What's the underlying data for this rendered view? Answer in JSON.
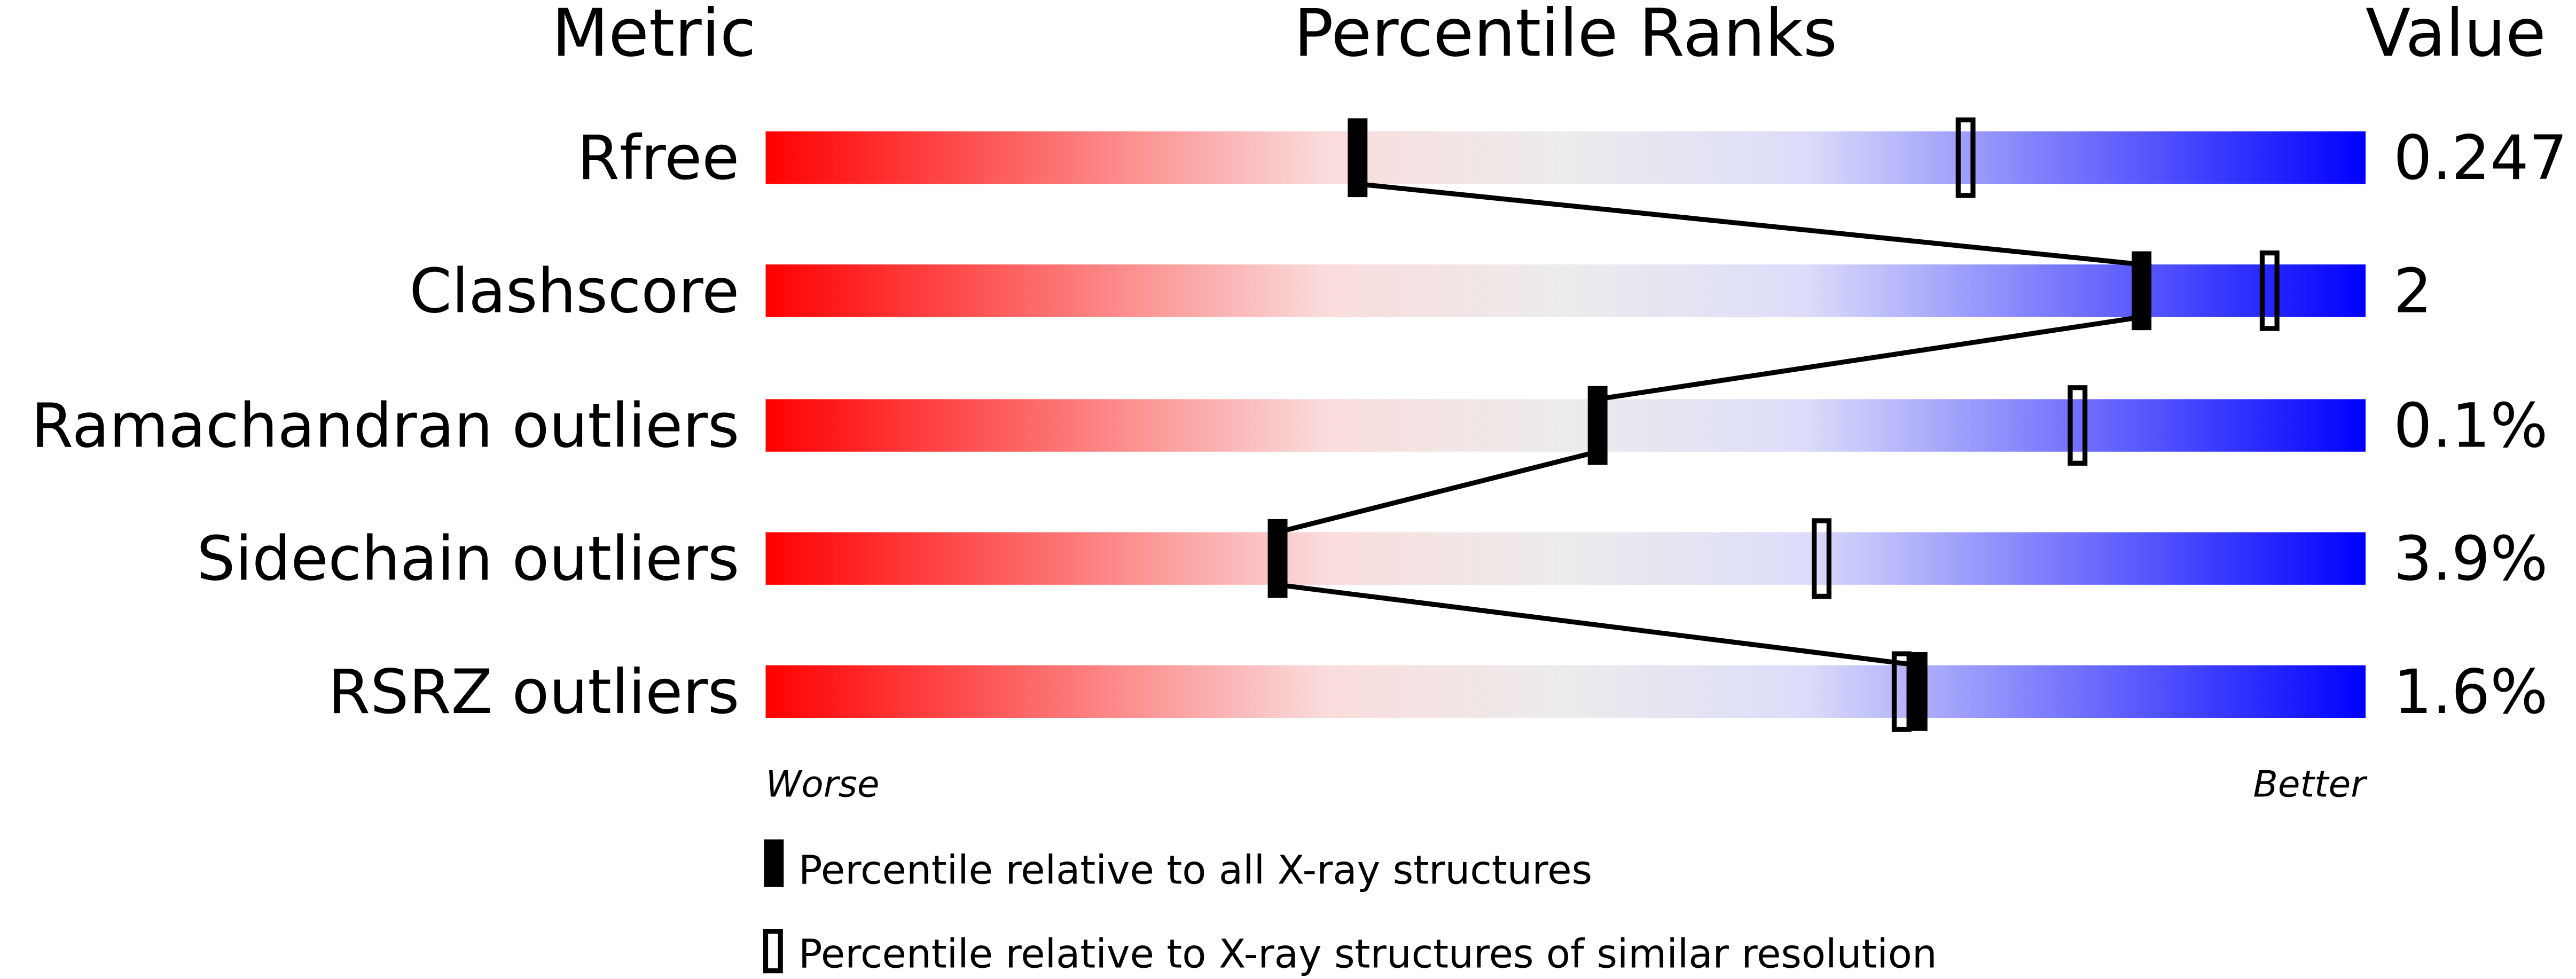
{
  "chart_data": {
    "type": "percentile-bar",
    "headers": {
      "metric": "Metric",
      "ranks": "Percentile Ranks",
      "value": "Value"
    },
    "xlim": [
      0,
      100
    ],
    "scale_labels": {
      "worse": "Worse",
      "better": "Better"
    },
    "gradient_colors": [
      "#ff0000",
      "#f0f0f0",
      "#0000ff"
    ],
    "rows": [
      {
        "metric": "Rfree",
        "value": "0.247",
        "percentile_all": 37,
        "percentile_similar": 75
      },
      {
        "metric": "Clashscore",
        "value": "2",
        "percentile_all": 86,
        "percentile_similar": 94
      },
      {
        "metric": "Ramachandran outliers",
        "value": "0.1%",
        "percentile_all": 52,
        "percentile_similar": 82
      },
      {
        "metric": "Sidechain outliers",
        "value": "3.9%",
        "percentile_all": 32,
        "percentile_similar": 66
      },
      {
        "metric": "RSRZ outliers",
        "value": "1.6%",
        "percentile_all": 72,
        "percentile_similar": 71
      }
    ],
    "legend": [
      {
        "marker": "filled",
        "label": "Percentile relative to all X-ray structures"
      },
      {
        "marker": "open",
        "label": "Percentile relative to X-ray structures of similar resolution"
      }
    ]
  }
}
